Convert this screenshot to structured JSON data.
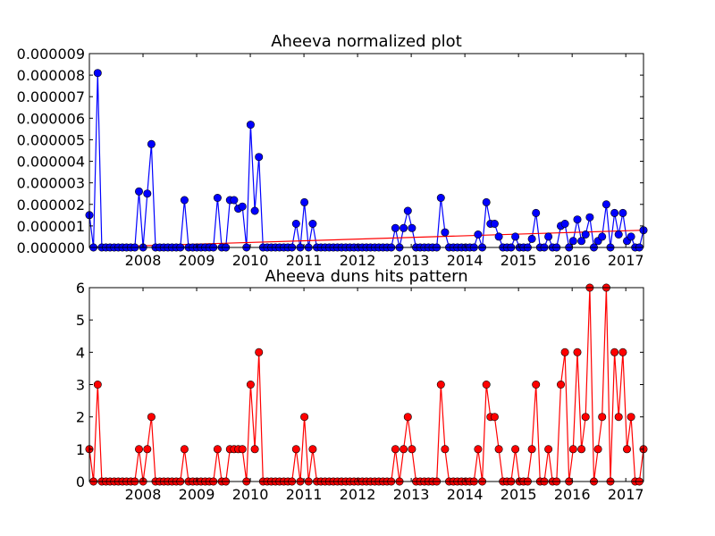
{
  "chart_data": [
    {
      "type": "line",
      "title": "Aheeva normalized plot",
      "xlabel": "",
      "ylabel": "",
      "xlim": [
        2007.0,
        2017.33
      ],
      "ylim": [
        0,
        9e-06
      ],
      "x_ticks": [
        "2008",
        "2009",
        "2010",
        "2011",
        "2012",
        "2013",
        "2014",
        "2015",
        "2016",
        "2017"
      ],
      "y_ticks": [
        "0.000000",
        "0.000001",
        "0.000002",
        "0.000003",
        "0.000004",
        "0.000005",
        "0.000006",
        "0.000007",
        "0.000008",
        "0.000009"
      ],
      "grid": false,
      "series": [
        {
          "color": "#0000ff",
          "marker": "circle",
          "values": [
            1.5e-06,
            0,
            8.1e-06,
            0,
            0,
            0,
            0,
            0,
            0,
            0,
            0,
            0,
            2.6e-06,
            0,
            2.5e-06,
            4.8e-06,
            0,
            0,
            0,
            0,
            0,
            0,
            0,
            2.2e-06,
            0,
            0,
            0,
            0,
            0,
            0,
            0,
            2.3e-06,
            0,
            0,
            2.2e-06,
            2.2e-06,
            1.8e-06,
            1.9e-06,
            0,
            5.7e-06,
            1.7e-06,
            4.2e-06,
            0,
            0,
            0,
            0,
            0,
            0,
            0,
            0,
            1.1e-06,
            0,
            2.1e-06,
            0,
            1.1e-06,
            0,
            0,
            0,
            0,
            0,
            0,
            0,
            0,
            0,
            0,
            0,
            0,
            0,
            0,
            0,
            0,
            0,
            0,
            0,
            9e-07,
            0,
            9e-07,
            1.7e-06,
            9e-07,
            0,
            0,
            0,
            0,
            0,
            0,
            2.3e-06,
            7e-07,
            0,
            0,
            0,
            0,
            0,
            0,
            0,
            6e-07,
            0,
            2.1e-06,
            1.1e-06,
            1.1e-06,
            5e-07,
            0,
            0,
            0,
            5e-07,
            0,
            0,
            0,
            4e-07,
            1.6e-06,
            0,
            0,
            5e-07,
            0,
            0,
            1e-06,
            1.1e-06,
            0,
            3e-07,
            1.3e-06,
            3e-07,
            6e-07,
            1.4e-06,
            0,
            3e-07,
            5e-07,
            2e-06,
            0,
            1.6e-06,
            6e-07,
            1.6e-06,
            3e-07,
            5e-07,
            0,
            0,
            8e-07
          ]
        },
        {
          "color": "#ff0000",
          "marker": "none",
          "trend_line": true,
          "values": [
            0.0,
            8e-07
          ]
        }
      ]
    },
    {
      "type": "line",
      "title": "Aheeva duns hits pattern",
      "xlabel": "",
      "ylabel": "",
      "xlim": [
        2007.0,
        2017.33
      ],
      "ylim": [
        0,
        6
      ],
      "x_ticks": [
        "2008",
        "2009",
        "2010",
        "2011",
        "2012",
        "2013",
        "2014",
        "2015",
        "2016",
        "2017"
      ],
      "y_ticks": [
        "0",
        "1",
        "2",
        "3",
        "4",
        "5",
        "6"
      ],
      "grid": false,
      "series": [
        {
          "color": "#ff0000",
          "marker": "circle",
          "values": [
            1,
            0,
            3,
            0,
            0,
            0,
            0,
            0,
            0,
            0,
            0,
            0,
            1,
            0,
            1,
            2,
            0,
            0,
            0,
            0,
            0,
            0,
            0,
            1,
            0,
            0,
            0,
            0,
            0,
            0,
            0,
            1,
            0,
            0,
            1,
            1,
            1,
            1,
            0,
            3,
            1,
            4,
            0,
            0,
            0,
            0,
            0,
            0,
            0,
            0,
            1,
            0,
            2,
            0,
            1,
            0,
            0,
            0,
            0,
            0,
            0,
            0,
            0,
            0,
            0,
            0,
            0,
            0,
            0,
            0,
            0,
            0,
            0,
            0,
            1,
            0,
            1,
            2,
            1,
            0,
            0,
            0,
            0,
            0,
            0,
            3,
            1,
            0,
            0,
            0,
            0,
            0,
            0,
            0,
            1,
            0,
            3,
            2,
            2,
            1,
            0,
            0,
            0,
            1,
            0,
            0,
            0,
            1,
            3,
            0,
            0,
            1,
            0,
            0,
            3,
            4,
            0,
            1,
            4,
            1,
            2,
            6,
            0,
            1,
            2,
            6,
            0,
            4,
            2,
            4,
            1,
            2,
            0,
            0,
            1
          ]
        }
      ]
    }
  ]
}
